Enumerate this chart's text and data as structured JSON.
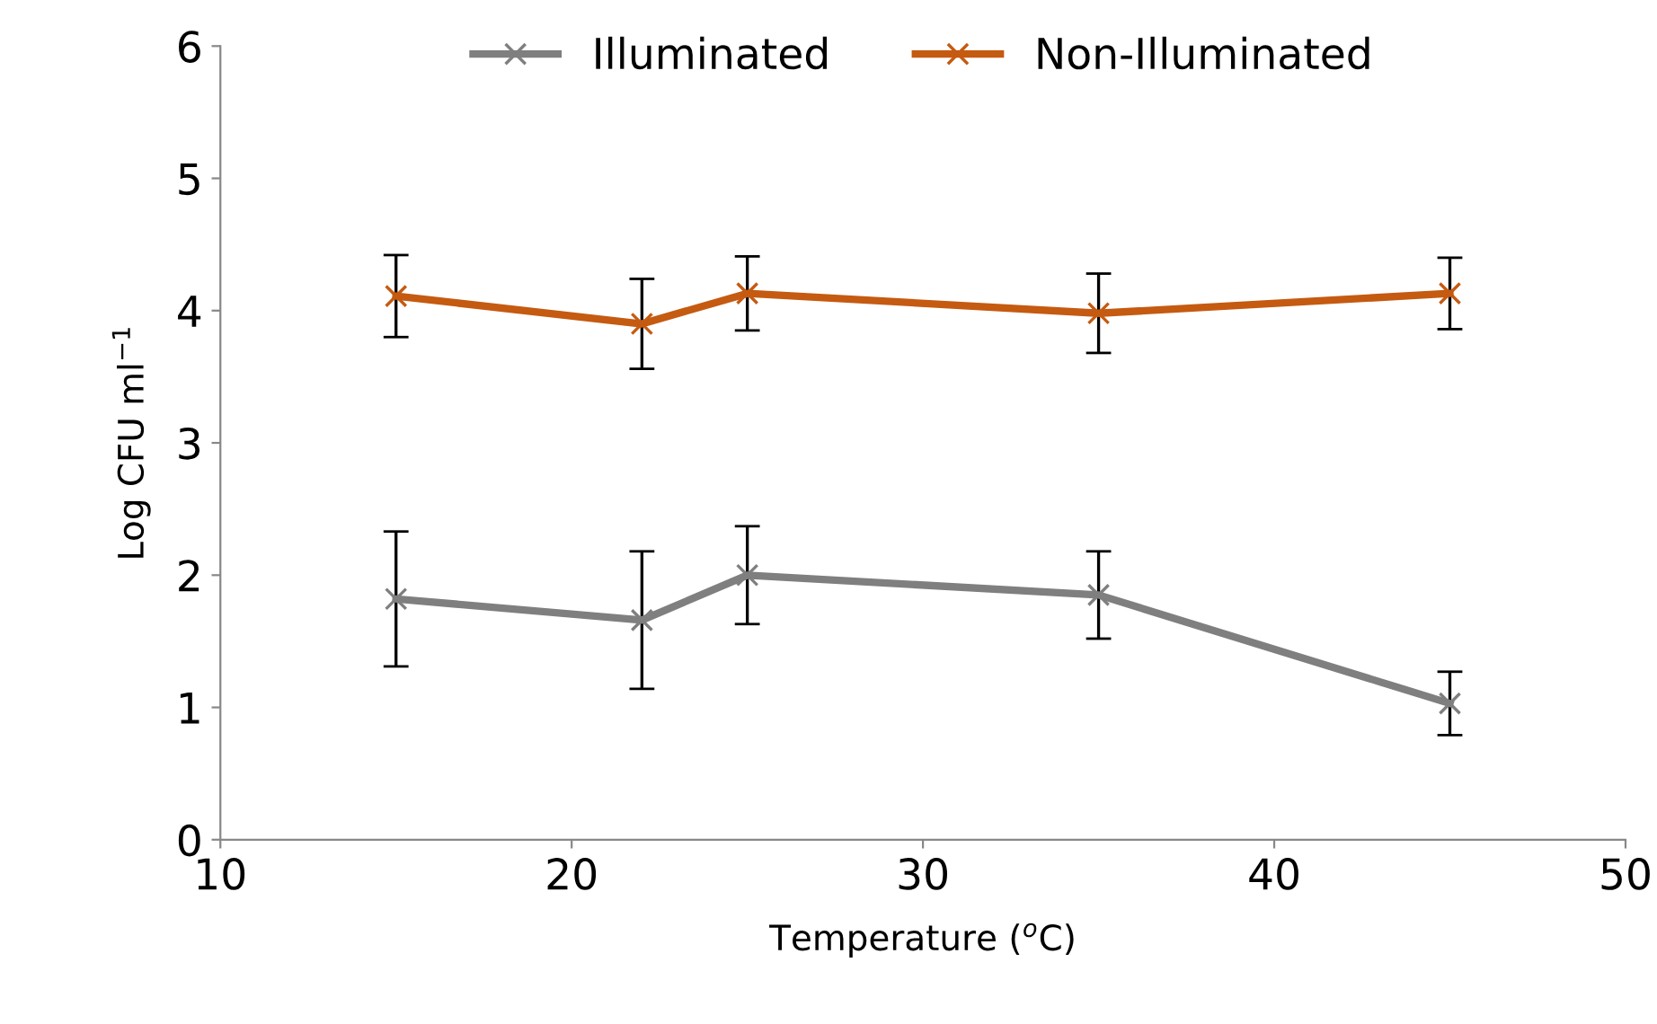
{
  "chart_data": {
    "type": "line",
    "xlabel": "Temperature ($^{o}$C)",
    "ylabel": "Log CFU ml$^{−1}$",
    "x": [
      15,
      22,
      25,
      35,
      45
    ],
    "series": [
      {
        "name": "Illuminated",
        "color": "#7f7f7f",
        "values": [
          1.82,
          1.66,
          2.0,
          1.85,
          1.03
        ],
        "errors": [
          0.51,
          0.52,
          0.37,
          0.33,
          0.24
        ]
      },
      {
        "name": "Non-Illuminated",
        "color": "#c55a11",
        "values": [
          4.11,
          3.9,
          4.13,
          3.98,
          4.13
        ],
        "errors": [
          0.31,
          0.34,
          0.28,
          0.3,
          0.27
        ]
      }
    ],
    "xlim": [
      10,
      50
    ],
    "xticks": [
      10,
      20,
      30,
      40,
      50
    ],
    "ylim": [
      0,
      6
    ],
    "yticks": [
      0,
      1,
      2,
      3,
      4,
      5,
      6
    ],
    "grid": false,
    "legend": "top",
    "marker": "cross",
    "line_style": "solid"
  }
}
